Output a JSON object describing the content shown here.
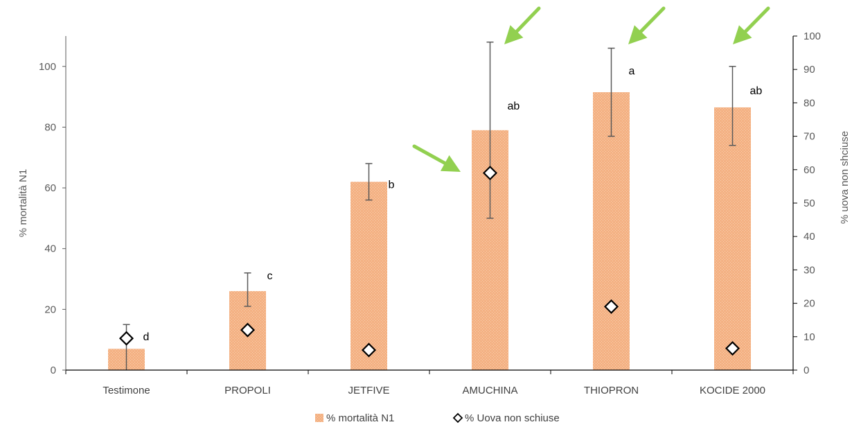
{
  "chart_data": {
    "type": "bar",
    "categories": [
      "Testimone",
      "PROPOLI",
      "JETFIVE",
      "AMUCHINA",
      "THIOPRON",
      "KOCIDE 2000"
    ],
    "series": [
      {
        "name": "% mortalità N1",
        "type": "bar",
        "axis": "left",
        "values": [
          7,
          26,
          62,
          79,
          91.5,
          86.5
        ],
        "error_low": [
          0,
          21,
          56,
          50,
          77,
          74
        ],
        "error_high": [
          15,
          32,
          68,
          108,
          106,
          100
        ],
        "significance": [
          "d",
          "c",
          "b",
          "ab",
          "a",
          "ab"
        ],
        "color": "#f4b183"
      },
      {
        "name": "% Uova non schiuse",
        "type": "scatter",
        "marker": "diamond",
        "axis": "right",
        "values": [
          9.5,
          12,
          6,
          59,
          19,
          6.5
        ],
        "color": "#000000"
      }
    ],
    "ylabel": "% mortalità N1",
    "y2label": "% uova non shciuse",
    "ylim": [
      0,
      110
    ],
    "y2lim": [
      0,
      100
    ],
    "yticks": [
      "0",
      "20",
      "40",
      "60",
      "80",
      "100"
    ],
    "y2ticks": [
      "0",
      "10",
      "20",
      "30",
      "40",
      "50",
      "60",
      "70",
      "80",
      "90",
      "100"
    ],
    "annotations": [
      {
        "type": "arrow",
        "color": "#92d050",
        "target": "AMUCHINA",
        "target_series": "% mortalità N1"
      },
      {
        "type": "arrow",
        "color": "#92d050",
        "target": "THIOPRON",
        "target_series": "% mortalità N1"
      },
      {
        "type": "arrow",
        "color": "#92d050",
        "target": "KOCIDE 2000",
        "target_series": "% mortalità N1"
      },
      {
        "type": "arrow",
        "color": "#92d050",
        "target": "AMUCHINA",
        "target_series": "% Uova non schiuse"
      }
    ],
    "legend": {
      "position": "bottom"
    },
    "grid": false
  }
}
